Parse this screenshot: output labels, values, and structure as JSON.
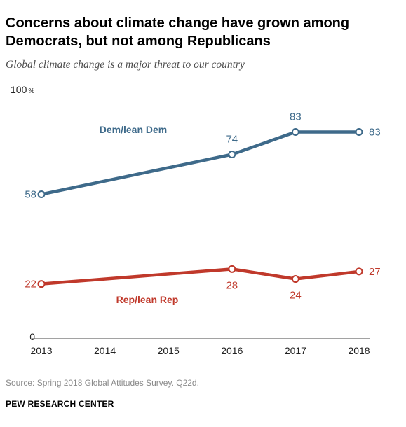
{
  "title": "Concerns about climate change have grown among Democrats, but not among Republicans",
  "subtitle": "Global climate change is a major threat to our country",
  "source": "Source: Spring 2018 Global Attitudes Survey. Q22d.",
  "org": "PEW RESEARCH CENTER",
  "chart_data": {
    "type": "line",
    "x": [
      2013,
      2014,
      2015,
      2016,
      2017,
      2018
    ],
    "ylim": [
      0,
      100
    ],
    "y_ticks": [
      "0",
      "100"
    ],
    "y_unit": "%",
    "grid": false,
    "series": [
      {
        "name": "Dem/lean Dem",
        "color": "#3e6a8a",
        "points": [
          [
            2013,
            58
          ],
          [
            2016,
            74
          ],
          [
            2017,
            83
          ],
          [
            2018,
            83
          ]
        ],
        "labels": [
          "58",
          "74",
          "83",
          "83"
        ]
      },
      {
        "name": "Rep/lean Rep",
        "color": "#c0392b",
        "points": [
          [
            2013,
            22
          ],
          [
            2016,
            28
          ],
          [
            2017,
            24
          ],
          [
            2018,
            27
          ]
        ],
        "labels": [
          "22",
          "28",
          "24",
          "27"
        ]
      }
    ]
  }
}
